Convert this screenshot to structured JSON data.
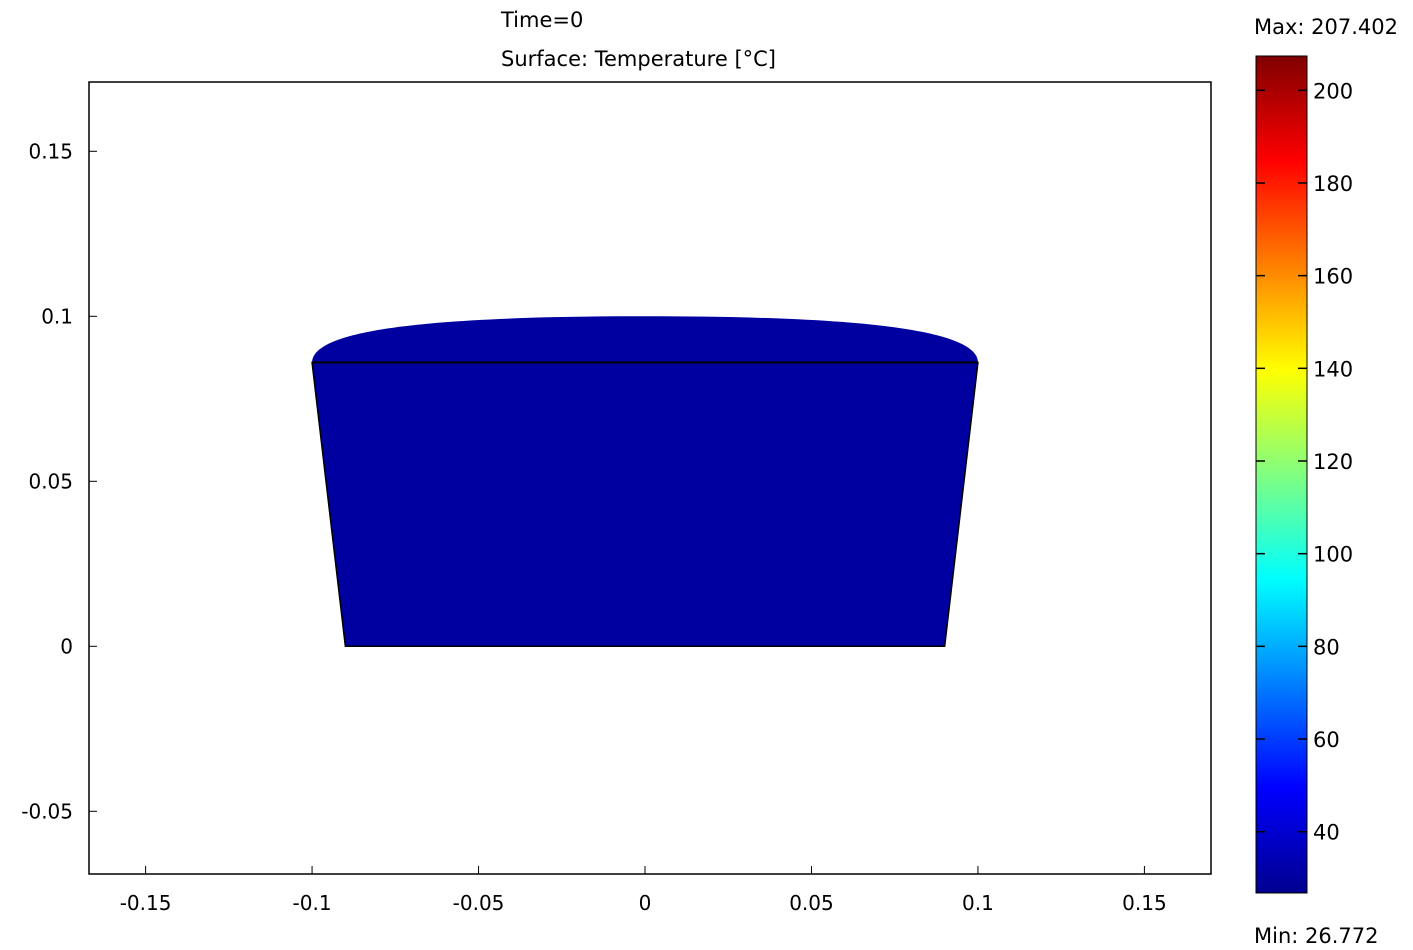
{
  "chart_data": {
    "type": "surface",
    "title_lines": [
      "Time=0",
      "Surface: Temperature [°C]"
    ],
    "xlabel": "",
    "ylabel": "",
    "xlim": [
      -0.167,
      0.17
    ],
    "ylim": [
      -0.069,
      0.171
    ],
    "x_ticks": [
      {
        "value": -0.15,
        "label": "-0.15"
      },
      {
        "value": -0.1,
        "label": "-0.1"
      },
      {
        "value": -0.05,
        "label": "-0.05"
      },
      {
        "value": 0,
        "label": "0"
      },
      {
        "value": 0.05,
        "label": "0.05"
      },
      {
        "value": 0.1,
        "label": "0.1"
      },
      {
        "value": 0.15,
        "label": "0.15"
      }
    ],
    "y_ticks": [
      {
        "value": 0.15,
        "label": "0.15"
      },
      {
        "value": 0.1,
        "label": "0.1"
      },
      {
        "value": 0.05,
        "label": "0.05"
      },
      {
        "value": 0,
        "label": "0"
      },
      {
        "value": -0.05,
        "label": "-0.05"
      }
    ],
    "surface_color": "#0000a0",
    "surface_temperature": 26.772,
    "geometry": {
      "body_outline": [
        [
          -0.1,
          0.086
        ],
        [
          0.1,
          0.086
        ],
        [
          0.09,
          0
        ],
        [
          -0.09,
          0
        ]
      ],
      "cap_baseline_y": 0.086,
      "cap_top_y": 0.1
    },
    "colorbar": {
      "max_label": "Max: 207.402",
      "min_label": "Min: 26.772",
      "min": 26.772,
      "max": 207.402,
      "colormap": "jet",
      "ticks": [
        {
          "value": 200,
          "label": "200"
        },
        {
          "value": 180,
          "label": "180"
        },
        {
          "value": 160,
          "label": "160"
        },
        {
          "value": 140,
          "label": "140"
        },
        {
          "value": 120,
          "label": "120"
        },
        {
          "value": 100,
          "label": "100"
        },
        {
          "value": 80,
          "label": "80"
        },
        {
          "value": 60,
          "label": "60"
        },
        {
          "value": 40,
          "label": "40"
        }
      ]
    }
  }
}
